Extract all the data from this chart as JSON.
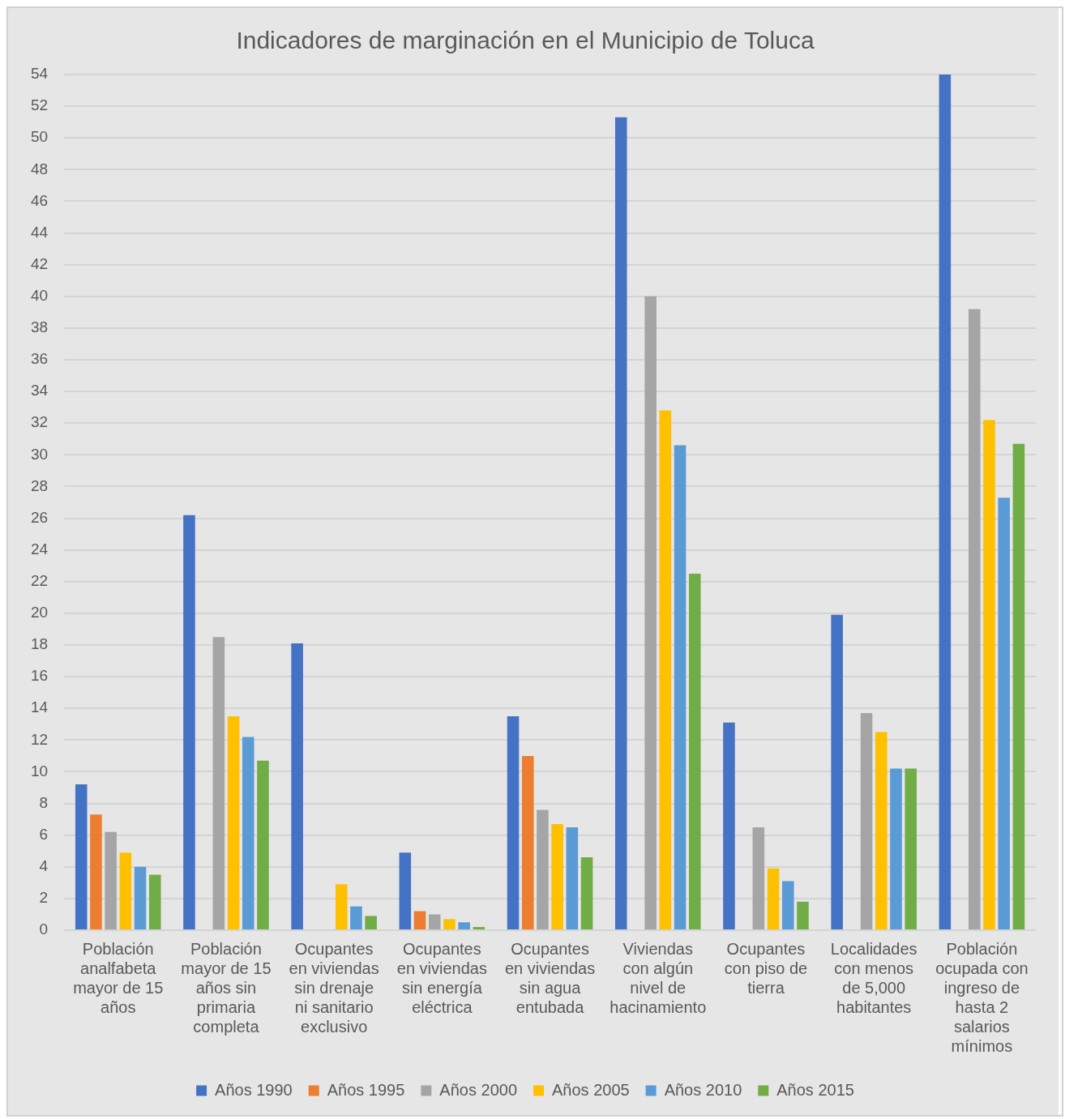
{
  "chart_data": {
    "type": "bar",
    "title": "Indicadores de marginación en el Municipio de Toluca",
    "categories": [
      "Población analfabeta mayor de 15 años",
      "Población mayor de 15 años sin primaria completa",
      "Ocupantes en viviendas sin drenaje ni sanitario exclusivo",
      "Ocupantes en viviendas sin energía eléctrica",
      "Ocupantes en viviendas sin agua entubada",
      "Viviendas con algún nivel de hacinamiento",
      "Ocupantes con piso de tierra",
      "Localidades con menos de 5,000 habitantes",
      "Población ocupada con ingreso de hasta 2 salarios mínimos"
    ],
    "series": [
      {
        "name": "Años 1990",
        "color": "#4472c4",
        "values": [
          9.2,
          26.2,
          18.1,
          4.9,
          13.5,
          51.3,
          13.1,
          19.9,
          54.0
        ]
      },
      {
        "name": "Años 1995",
        "color": "#ed7d31",
        "values": [
          7.3,
          null,
          null,
          1.2,
          11.0,
          null,
          null,
          null,
          null
        ]
      },
      {
        "name": "Años 2000",
        "color": "#a5a5a5",
        "values": [
          6.2,
          18.5,
          null,
          1.0,
          7.6,
          40.0,
          6.5,
          13.7,
          39.2
        ]
      },
      {
        "name": "Años 2005",
        "color": "#ffc000",
        "values": [
          4.9,
          13.5,
          2.9,
          0.7,
          6.7,
          32.8,
          3.9,
          12.5,
          32.2
        ]
      },
      {
        "name": "Años 2010",
        "color": "#5b9bd5",
        "values": [
          4.0,
          12.2,
          1.5,
          0.5,
          6.5,
          30.6,
          3.1,
          10.2,
          27.3
        ]
      },
      {
        "name": "Años 2015",
        "color": "#70ad47",
        "values": [
          3.5,
          10.7,
          0.9,
          0.2,
          4.6,
          22.5,
          1.8,
          10.2,
          30.7
        ]
      }
    ],
    "ylim": [
      0,
      54
    ],
    "yticks": [
      0,
      2,
      4,
      6,
      8,
      10,
      12,
      14,
      16,
      18,
      20,
      22,
      24,
      26,
      28,
      30,
      32,
      34,
      36,
      38,
      40,
      42,
      44,
      46,
      48,
      50,
      52,
      54
    ],
    "grid": "y",
    "legend": "bottom"
  }
}
